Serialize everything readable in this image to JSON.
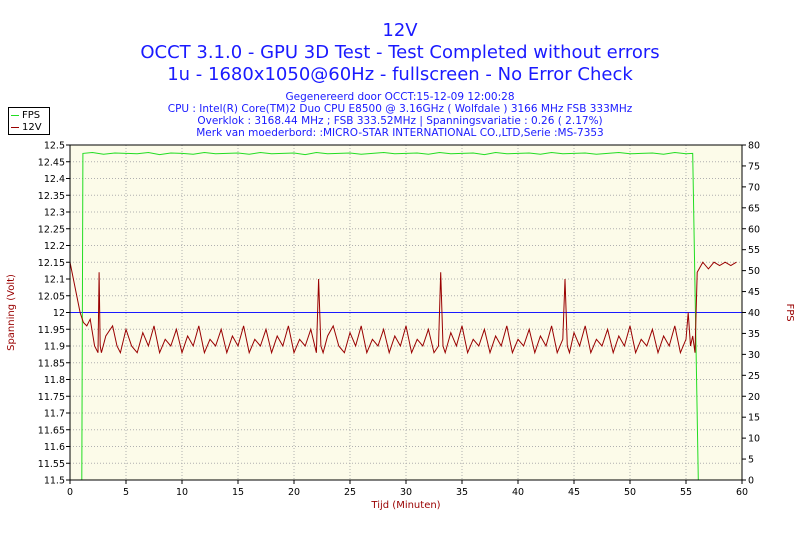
{
  "header": {
    "title": "12V",
    "subtitle1": "OCCT 3.1.0 - GPU 3D Test - Test Completed without errors",
    "subtitle2": "1u - 1680x1050@60Hz - fullscreen - No Error Check"
  },
  "info": [
    "Gegenereerd door OCCT:15-12-09 12:00:28",
    "CPU : Intel(R) Core(TM)2 Duo CPU E8500 @ 3.16GHz ( Wolfdale ) 3166 MHz FSB 333MHz",
    "Overklok : 3168.44 MHz ; FSB 333.52MHz | Spanningsvariatie : 0.26 ( 2.17%)",
    "Merk van moederbord: :MICRO-STAR INTERNATIONAL CO.,LTD,Serie :MS-7353"
  ],
  "legend": [
    {
      "name": "FPS",
      "color": "#22dd22"
    },
    {
      "name": "12V",
      "color": "#990000"
    }
  ],
  "colors": {
    "plot_bg": "#fcfbe9",
    "grid": "#b0b0b0",
    "title": "#1a1aff",
    "voltage": "#990000",
    "fps": "#22dd22",
    "reference": "#1a1aff",
    "axis_text": "#000000",
    "axis_title": "#990000"
  },
  "chart_data": {
    "type": "line",
    "xlabel": "Tijd (Minuten)",
    "ylabel": "Spanning (Volt)",
    "y2label": "FPS",
    "xlim": [
      0,
      60
    ],
    "ylim": [
      11.5,
      12.5
    ],
    "y2lim": [
      0,
      80
    ],
    "x_ticks": [
      0,
      5,
      10,
      15,
      20,
      25,
      30,
      35,
      40,
      45,
      50,
      55,
      60
    ],
    "y_ticks": [
      "11.5",
      "11.55",
      "11.6",
      "11.65",
      "11.7",
      "11.75",
      "11.8",
      "11.85",
      "11.9",
      "11.95",
      "12",
      "12.05",
      "12.1",
      "12.15",
      "12.2",
      "12.25",
      "12.3",
      "12.35",
      "12.4",
      "12.45",
      "12.5"
    ],
    "y2_ticks": [
      0,
      5,
      10,
      15,
      20,
      25,
      30,
      35,
      40,
      45,
      50,
      55,
      60,
      65,
      70,
      75,
      80
    ],
    "grid": true,
    "reference_line": 12.0,
    "series": [
      {
        "name": "12V",
        "axis": "left",
        "x": [
          0,
          0.9,
          1.2,
          1.5,
          1.8,
          2.2,
          2.5,
          2.6,
          2.7,
          2.8,
          3.2,
          3.8,
          4.2,
          4.5,
          5.0,
          5.5,
          6.0,
          6.5,
          7.0,
          7.5,
          8.0,
          8.5,
          9.0,
          9.5,
          10.0,
          10.5,
          11.0,
          11.5,
          12.0,
          12.5,
          13.0,
          13.5,
          14.0,
          14.5,
          15.0,
          15.5,
          16.0,
          16.5,
          17.0,
          17.5,
          18.0,
          18.5,
          19.0,
          19.5,
          20.0,
          20.5,
          21.0,
          21.5,
          22.0,
          22.2,
          22.4,
          22.6,
          23.0,
          23.5,
          24.0,
          24.5,
          25.0,
          25.5,
          26.0,
          26.5,
          27.0,
          27.5,
          28.0,
          28.5,
          29.0,
          29.5,
          30.0,
          30.5,
          31.0,
          31.5,
          32.0,
          32.5,
          32.9,
          33.1,
          33.3,
          33.5,
          34.0,
          34.5,
          35.0,
          35.5,
          36.0,
          36.5,
          37.0,
          37.5,
          38.0,
          38.5,
          39.0,
          39.5,
          40.0,
          40.5,
          41.0,
          41.5,
          42.0,
          42.5,
          43.0,
          43.5,
          44.0,
          44.2,
          44.4,
          44.6,
          45.0,
          45.5,
          46.0,
          46.5,
          47.0,
          47.5,
          48.0,
          48.5,
          49.0,
          49.5,
          50.0,
          50.5,
          51.0,
          51.5,
          52.0,
          52.5,
          53.0,
          53.5,
          54.0,
          54.5,
          55.0,
          55.2,
          55.4,
          55.6,
          55.8,
          56.0,
          56.5,
          57.0,
          57.5,
          58.0,
          58.5,
          59.0,
          59.5
        ],
        "values": [
          12.15,
          12.0,
          11.97,
          11.96,
          11.98,
          11.9,
          11.88,
          12.12,
          11.9,
          11.88,
          11.93,
          11.96,
          11.9,
          11.88,
          11.95,
          11.9,
          11.88,
          11.94,
          11.9,
          11.96,
          11.88,
          11.92,
          11.9,
          11.95,
          11.88,
          11.93,
          11.9,
          11.96,
          11.88,
          11.92,
          11.9,
          11.95,
          11.88,
          11.93,
          11.9,
          11.96,
          11.88,
          11.92,
          11.9,
          11.95,
          11.88,
          11.93,
          11.9,
          11.96,
          11.88,
          11.92,
          11.9,
          11.95,
          11.88,
          12.1,
          11.9,
          11.88,
          11.93,
          11.96,
          11.9,
          11.88,
          11.94,
          11.9,
          11.96,
          11.88,
          11.92,
          11.9,
          11.95,
          11.88,
          11.93,
          11.9,
          11.96,
          11.88,
          11.92,
          11.9,
          11.95,
          11.88,
          11.9,
          12.12,
          11.9,
          11.88,
          11.94,
          11.9,
          11.96,
          11.88,
          11.92,
          11.9,
          11.95,
          11.88,
          11.93,
          11.9,
          11.96,
          11.88,
          11.92,
          11.9,
          11.95,
          11.88,
          11.93,
          11.9,
          11.96,
          11.88,
          11.92,
          12.1,
          11.9,
          11.88,
          11.94,
          11.9,
          11.96,
          11.88,
          11.92,
          11.9,
          11.95,
          11.88,
          11.93,
          11.9,
          11.96,
          11.88,
          11.92,
          11.9,
          11.95,
          11.88,
          11.93,
          11.9,
          11.96,
          11.88,
          11.92,
          12.0,
          11.9,
          11.93,
          11.88,
          12.12,
          12.15,
          12.13,
          12.15,
          12.14,
          12.15,
          12.14,
          12.15
        ],
        "color": "#990000"
      },
      {
        "name": "FPS",
        "axis": "right",
        "x": [
          0,
          1.05,
          1.15,
          2,
          3,
          4,
          5,
          6,
          7,
          8,
          9,
          10,
          11,
          12,
          13,
          14,
          15,
          16,
          17,
          18,
          19,
          20,
          21,
          22,
          23,
          24,
          25,
          26,
          27,
          28,
          29,
          30,
          31,
          32,
          33,
          34,
          35,
          36,
          37,
          38,
          39,
          40,
          41,
          42,
          43,
          44,
          45,
          46,
          47,
          48,
          49,
          50,
          51,
          52,
          53,
          54,
          55,
          55.6,
          56.1,
          56.3
        ],
        "values": [
          0,
          0,
          78,
          78.2,
          77.8,
          78.1,
          78.0,
          77.9,
          78.2,
          77.7,
          78.1,
          78.0,
          77.8,
          78.2,
          77.9,
          78.0,
          78.1,
          77.8,
          78.2,
          77.9,
          78.0,
          78.1,
          77.7,
          78.2,
          77.9,
          78.0,
          78.1,
          77.8,
          78.0,
          78.2,
          77.9,
          78.0,
          78.1,
          77.8,
          78.2,
          77.9,
          78.0,
          78.1,
          77.7,
          78.2,
          77.9,
          78.0,
          78.1,
          77.8,
          78.2,
          77.9,
          78.0,
          78.1,
          77.8,
          78.0,
          78.2,
          77.9,
          78.0,
          78.1,
          77.8,
          78.2,
          77.9,
          78.0,
          0,
          0
        ],
        "color": "#22dd22"
      }
    ]
  }
}
